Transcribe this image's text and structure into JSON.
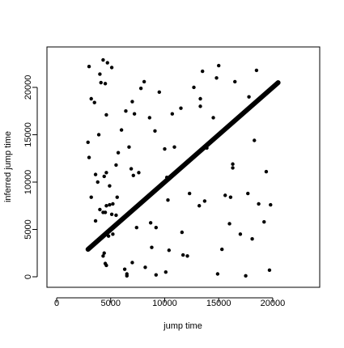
{
  "chart_data": {
    "type": "scatter",
    "x_label": "jump time",
    "y_label": "inferred jump time",
    "xlim": [
      -900,
      24350
    ],
    "ylim": [
      -1110,
      24270
    ],
    "xticks": [
      0,
      5000,
      10000,
      15000,
      20000
    ],
    "yticks": [
      0,
      5000,
      10000,
      15000,
      20000
    ],
    "color": "#000000",
    "x": [
      3000,
      3200,
      3500,
      4000,
      4300,
      4700,
      4500,
      4100,
      5100,
      4600,
      2900,
      3000,
      3900,
      3600,
      3800,
      4400,
      4600,
      3200,
      3600,
      4000,
      4300,
      4500,
      4600,
      4900,
      5100,
      5200,
      5500,
      5200,
      4800,
      4900,
      5600,
      5500,
      5700,
      6000,
      4300,
      4400,
      4500,
      4600,
      6300,
      6500,
      6500,
      7000,
      6700,
      6400,
      7000,
      6900,
      7100,
      7200,
      7600,
      7800,
      8100,
      8600,
      7400,
      8200,
      8700,
      8800,
      9200,
      9500,
      9100,
      9200,
      10000,
      10200,
      10300,
      10400,
      10100,
      10700,
      10900,
      11500,
      11600,
      11700,
      12100,
      12300,
      12700,
      13300,
      13300,
      13200,
      13500,
      13700,
      13900,
      14500,
      14800,
      15000,
      14900,
      15300,
      15600,
      16100,
      16000,
      16300,
      16300,
      16500,
      17000,
      17500,
      17700,
      17800,
      18100,
      18300,
      18500,
      18700,
      19200,
      19400,
      19700,
      19800
    ],
    "y": [
      22200,
      18800,
      18400,
      21400,
      22900,
      22600,
      20400,
      20500,
      22100,
      17100,
      14200,
      12600,
      15000,
      10800,
      10000,
      10600,
      11000,
      8400,
      5900,
      7100,
      6800,
      6800,
      7500,
      7600,
      6600,
      7700,
      6500,
      4500,
      4300,
      9600,
      8400,
      11800,
      13100,
      15500,
      2200,
      2500,
      1400,
      1200,
      800,
      300,
      100,
      1500,
      13700,
      17500,
      18500,
      11400,
      10700,
      17200,
      11000,
      19900,
      20600,
      16800,
      5200,
      1000,
      5700,
      3100,
      5200,
      19500,
      15400,
      200,
      13500,
      10500,
      8100,
      2800,
      500,
      17200,
      13700,
      17800,
      4700,
      2300,
      2200,
      8800,
      20000,
      18000,
      18800,
      7500,
      21700,
      8000,
      13600,
      16800,
      21000,
      22300,
      300,
      2900,
      8600,
      8400,
      5600,
      11500,
      11900,
      20600,
      4500,
      100,
      8800,
      19000,
      4000,
      14400,
      21800,
      7700,
      5800,
      11100,
      700,
      7600
    ],
    "line": {
      "x": [
        2900,
        20500
      ],
      "y": [
        2900,
        20500
      ]
    }
  }
}
